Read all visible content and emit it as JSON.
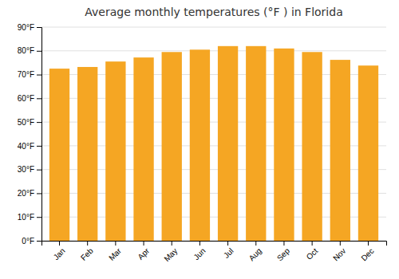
{
  "chart_data": {
    "type": "bar",
    "title": "Average monthly temperatures (°F ) in Florida",
    "categories": [
      "Jan",
      "Feb",
      "Mar",
      "Apr",
      "May",
      "Jun",
      "Jul",
      "Aug",
      "Sep",
      "Oct",
      "Nov",
      "Dec"
    ],
    "values": [
      72.5,
      73.2,
      75.5,
      77.2,
      79.5,
      80.5,
      82.0,
      82.0,
      81.0,
      79.5,
      76.2,
      73.8
    ],
    "color": "#F5A623",
    "ylim": [
      0,
      90
    ],
    "yticks": [
      {
        "value": 0,
        "label": "0°F"
      },
      {
        "value": 10,
        "label": "10°F"
      },
      {
        "value": 20,
        "label": "20°F"
      },
      {
        "value": 30,
        "label": "30°F"
      },
      {
        "value": 40,
        "label": "40°F"
      },
      {
        "value": 50,
        "label": "50°F"
      },
      {
        "value": 60,
        "label": "60°F"
      },
      {
        "value": 70,
        "label": "70°F"
      },
      {
        "value": 80,
        "label": "80°F"
      },
      {
        "value": 90,
        "label": "90°F"
      }
    ],
    "grid": true
  }
}
